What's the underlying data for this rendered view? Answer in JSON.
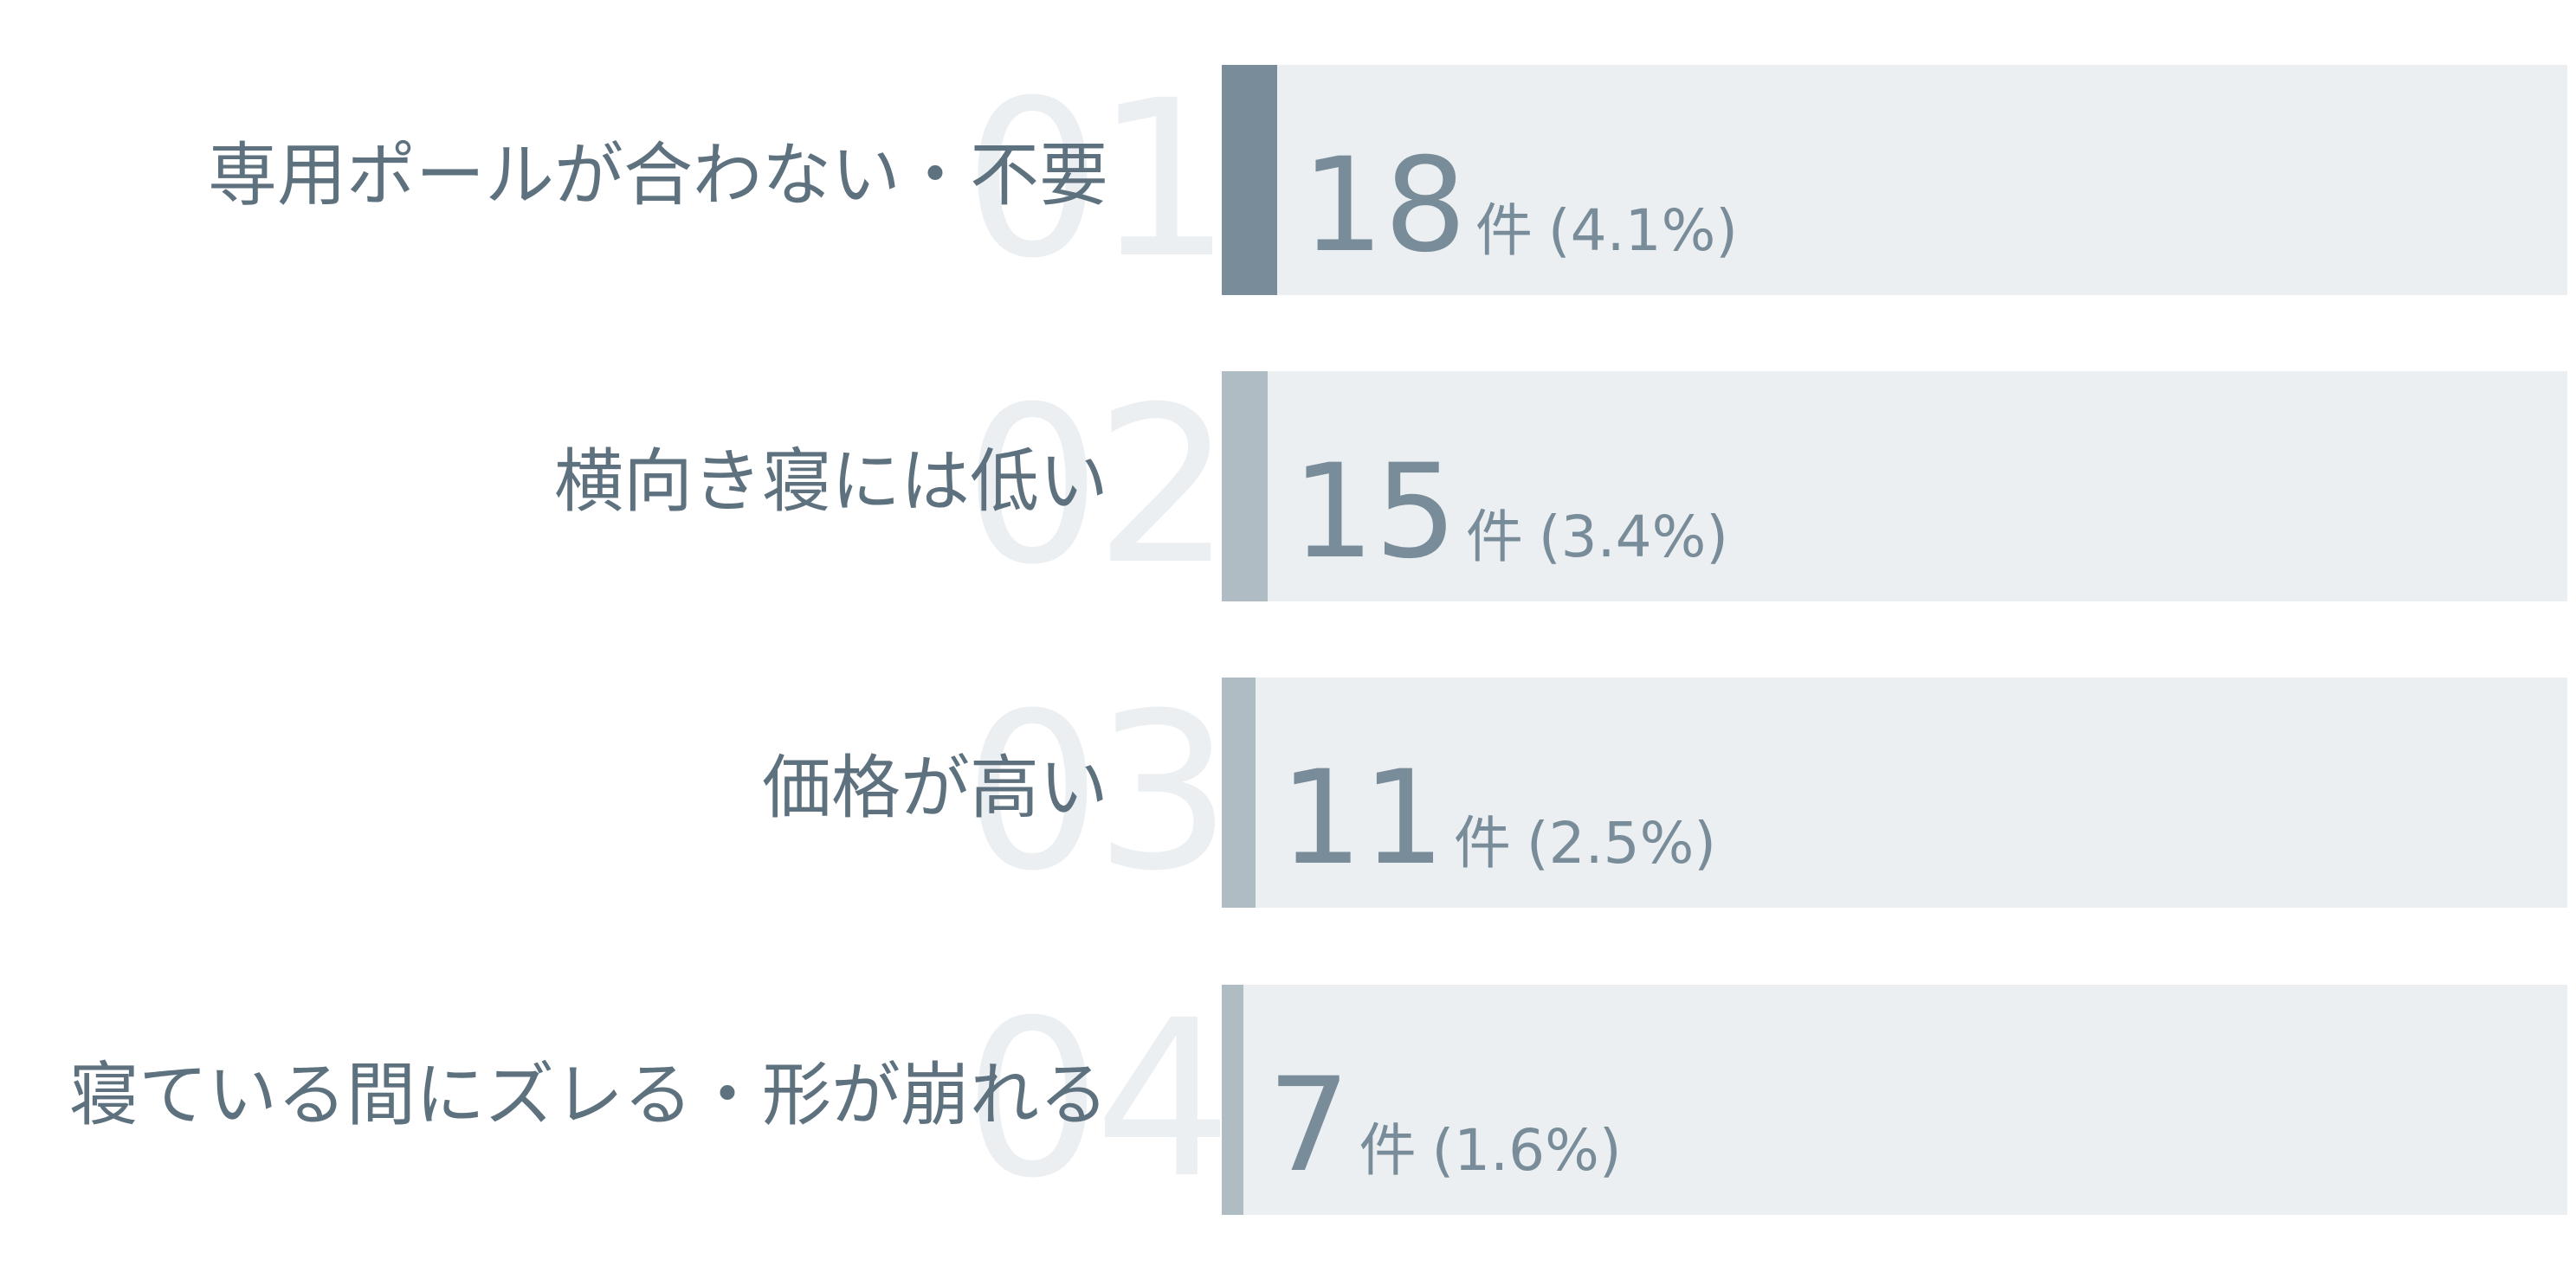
{
  "colors": {
    "top_bar": "#788c99",
    "bar": "#afbcc4",
    "track": "#eceff2",
    "label": "#5e717e",
    "value": "#788c99",
    "rank": "#eceff2"
  },
  "chart_data": {
    "type": "bar",
    "orientation": "horizontal",
    "title": "",
    "xlabel": "",
    "ylabel": "",
    "unit": "件",
    "xlim": [
      0,
      100
    ],
    "grid": false,
    "categories": [
      "専用ポールが合わない・不要",
      "横向き寝には低い",
      "価格が高い",
      "寝ている間にズレる・形が崩れる"
    ],
    "ranks": [
      "01",
      "02",
      "03",
      "04"
    ],
    "values": [
      18,
      15,
      11,
      7
    ],
    "percentages": [
      "4.1%",
      "3.4%",
      "2.5%",
      "1.6%"
    ],
    "value_labels": [
      {
        "count": "18",
        "unit": "件",
        "pct": "(4.1%)"
      },
      {
        "count": "15",
        "unit": "件",
        "pct": "(3.4%)"
      },
      {
        "count": "11",
        "unit": "件",
        "pct": "(2.5%)"
      },
      {
        "count": "7",
        "unit": "件",
        "pct": "(1.6%)"
      }
    ]
  }
}
